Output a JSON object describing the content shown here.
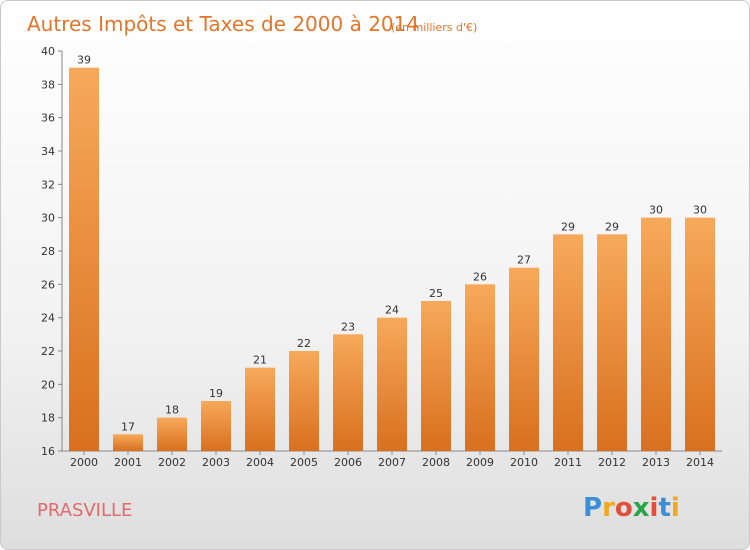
{
  "chart_data": {
    "type": "bar",
    "title": "Autres Impôts et Taxes de 2000 à 2014",
    "subtitle": "(en milliers d'€)",
    "categories": [
      "2000",
      "2001",
      "2002",
      "2003",
      "2004",
      "2005",
      "2006",
      "2007",
      "2008",
      "2009",
      "2010",
      "2011",
      "2012",
      "2013",
      "2014"
    ],
    "values": [
      39,
      17,
      18,
      19,
      21,
      22,
      23,
      24,
      25,
      26,
      27,
      29,
      29,
      30,
      30
    ],
    "ylim": [
      16,
      40
    ],
    "yticks": [
      16,
      18,
      20,
      22,
      24,
      26,
      28,
      30,
      32,
      34,
      36,
      38,
      40
    ],
    "grid": false,
    "bar_color": "#f28c35",
    "bar_color_light": "#f7a95a",
    "bar_color_dark": "#d8701f"
  },
  "commune": "PRASVILLE",
  "logo": {
    "text": "Proxiti",
    "letters": [
      "P",
      "r",
      "o",
      "x",
      "i",
      "t",
      "i"
    ],
    "colors": [
      "#3a8fd6",
      "#f0a81e",
      "#e24e38",
      "#2aa34a",
      "#e24e38",
      "#3a8fd6",
      "#f0a81e"
    ]
  }
}
